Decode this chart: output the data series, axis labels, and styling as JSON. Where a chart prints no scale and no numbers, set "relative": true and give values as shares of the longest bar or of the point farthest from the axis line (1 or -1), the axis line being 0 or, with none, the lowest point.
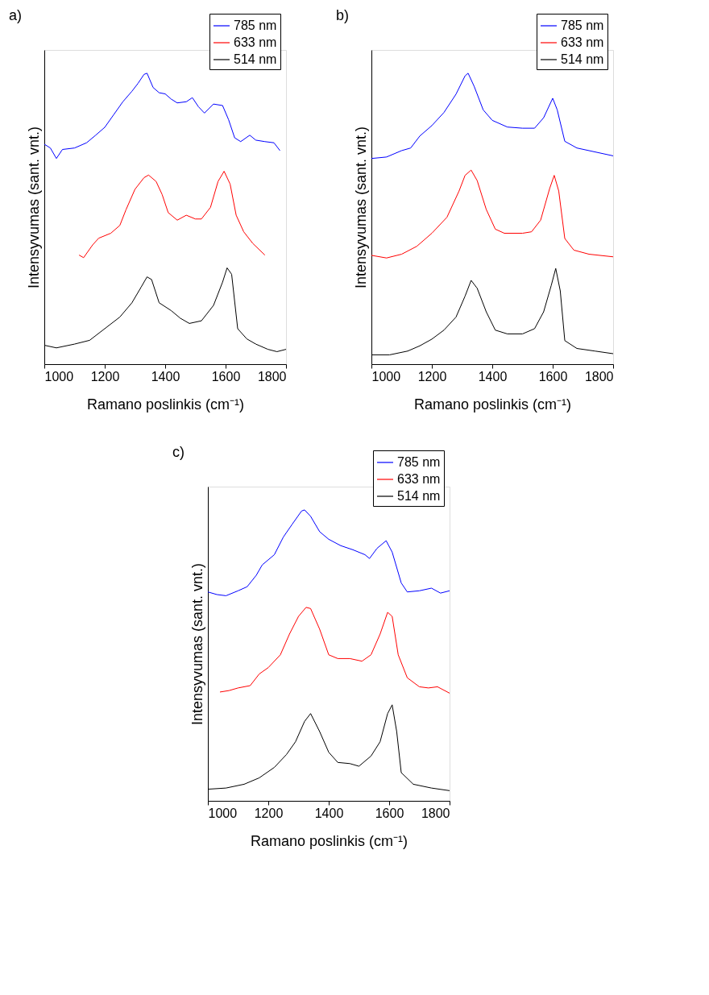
{
  "chart_data": [
    {
      "type": "line",
      "title": "a)",
      "xlabel": "Ramano poslinkis (cm⁻¹)",
      "ylabel": "Intensyvumas (sant. vnt.)",
      "relative": true,
      "xlim": [
        1000,
        1800
      ],
      "xticks": [
        1000,
        1200,
        1400,
        1600,
        1800
      ],
      "tick_labels": "x",
      "grid": false,
      "legend": "top right",
      "line_style": "solid",
      "marker": "none",
      "series": [
        {
          "name": "785 nm",
          "color": "#0000ff",
          "x": [
            1000,
            1020,
            1040,
            1060,
            1100,
            1140,
            1170,
            1200,
            1230,
            1260,
            1290,
            1310,
            1330,
            1340,
            1360,
            1380,
            1400,
            1420,
            1440,
            1470,
            1490,
            1510,
            1530,
            1560,
            1590,
            1610,
            1630,
            1650,
            1680,
            1700,
            1730,
            1760,
            1780
          ],
          "values": [
            0.756,
            0.743,
            0.707,
            0.738,
            0.743,
            0.761,
            0.787,
            0.814,
            0.858,
            0.902,
            0.938,
            0.965,
            0.996,
            1.0,
            0.951,
            0.933,
            0.929,
            0.911,
            0.898,
            0.902,
            0.916,
            0.885,
            0.863,
            0.894,
            0.889,
            0.84,
            0.778,
            0.765,
            0.787,
            0.77,
            0.765,
            0.761,
            0.734
          ]
        },
        {
          "name": "633 nm",
          "color": "#ff0000",
          "x": [
            1115,
            1130,
            1160,
            1180,
            1220,
            1250,
            1270,
            1300,
            1330,
            1345,
            1370,
            1390,
            1410,
            1440,
            1470,
            1500,
            1520,
            1550,
            1575,
            1595,
            1615,
            1635,
            1660,
            1690,
            1730
          ],
          "values": [
            0.375,
            0.366,
            0.41,
            0.433,
            0.45,
            0.477,
            0.53,
            0.601,
            0.641,
            0.65,
            0.628,
            0.583,
            0.521,
            0.495,
            0.512,
            0.499,
            0.499,
            0.539,
            0.628,
            0.663,
            0.619,
            0.512,
            0.455,
            0.415,
            0.375
          ]
        },
        {
          "name": "514 nm",
          "color": "#000000",
          "x": [
            1000,
            1040,
            1100,
            1150,
            1200,
            1250,
            1290,
            1320,
            1340,
            1355,
            1380,
            1420,
            1450,
            1480,
            1520,
            1560,
            1590,
            1605,
            1620,
            1640,
            1670,
            1700,
            1740,
            1770,
            1800
          ],
          "values": [
            0.065,
            0.056,
            0.069,
            0.082,
            0.122,
            0.162,
            0.211,
            0.264,
            0.3,
            0.291,
            0.211,
            0.184,
            0.158,
            0.14,
            0.149,
            0.202,
            0.282,
            0.331,
            0.309,
            0.122,
            0.087,
            0.069,
            0.051,
            0.043,
            0.051
          ]
        }
      ]
    },
    {
      "type": "line",
      "title": "b)",
      "xlabel": "Ramano poslinkis (cm⁻¹)",
      "ylabel": "Intensyvumas (sant. vnt.)",
      "relative": true,
      "xlim": [
        1000,
        1800
      ],
      "xticks": [
        1000,
        1200,
        1400,
        1600,
        1800
      ],
      "tick_labels": "x",
      "grid": false,
      "legend": "top right",
      "line_style": "solid",
      "marker": "none",
      "series": [
        {
          "name": "785 nm",
          "color": "#0000ff",
          "x": [
            1000,
            1050,
            1100,
            1130,
            1160,
            1200,
            1240,
            1280,
            1310,
            1320,
            1340,
            1370,
            1400,
            1450,
            1500,
            1540,
            1570,
            1600,
            1615,
            1640,
            1680,
            1720,
            1760,
            1800
          ],
          "values": [
            0.707,
            0.712,
            0.734,
            0.743,
            0.784,
            0.82,
            0.865,
            0.928,
            0.991,
            1.0,
            0.955,
            0.874,
            0.838,
            0.815,
            0.811,
            0.811,
            0.847,
            0.914,
            0.874,
            0.766,
            0.743,
            0.734,
            0.725,
            0.716
          ]
        },
        {
          "name": "633 nm",
          "color": "#ff0000",
          "x": [
            1000,
            1050,
            1100,
            1150,
            1200,
            1250,
            1290,
            1310,
            1330,
            1350,
            1380,
            1410,
            1440,
            1500,
            1530,
            1560,
            1590,
            1605,
            1620,
            1640,
            1670,
            1720,
            1800
          ],
          "values": [
            0.374,
            0.365,
            0.378,
            0.405,
            0.45,
            0.505,
            0.595,
            0.649,
            0.667,
            0.631,
            0.532,
            0.464,
            0.45,
            0.45,
            0.455,
            0.495,
            0.604,
            0.649,
            0.595,
            0.432,
            0.392,
            0.378,
            0.369
          ]
        },
        {
          "name": "514 nm",
          "color": "#000000",
          "x": [
            1000,
            1060,
            1120,
            1160,
            1200,
            1240,
            1280,
            1310,
            1330,
            1350,
            1380,
            1410,
            1450,
            1500,
            1540,
            1570,
            1595,
            1610,
            1625,
            1640,
            1680,
            1740,
            1800
          ],
          "values": [
            0.032,
            0.032,
            0.045,
            0.063,
            0.086,
            0.117,
            0.162,
            0.234,
            0.288,
            0.261,
            0.18,
            0.117,
            0.104,
            0.104,
            0.122,
            0.18,
            0.27,
            0.329,
            0.252,
            0.081,
            0.054,
            0.045,
            0.036
          ]
        }
      ]
    },
    {
      "type": "line",
      "title": "c)",
      "xlabel": "Ramano poslinkis (cm⁻¹)",
      "ylabel": "Intensyvumas (sant. vnt.)",
      "relative": true,
      "xlim": [
        1000,
        1800
      ],
      "xticks": [
        1000,
        1200,
        1400,
        1600,
        1800
      ],
      "tick_labels": "x",
      "grid": false,
      "legend": "top right",
      "line_style": "solid",
      "marker": "none",
      "series": [
        {
          "name": "785 nm",
          "color": "#0000ff",
          "x": [
            1000,
            1030,
            1060,
            1100,
            1130,
            1160,
            1180,
            1220,
            1250,
            1280,
            1310,
            1320,
            1340,
            1370,
            1400,
            1440,
            1480,
            1520,
            1535,
            1560,
            1590,
            1610,
            1640,
            1660,
            1700,
            1740,
            1770,
            1800
          ],
          "values": [
            0.718,
            0.709,
            0.705,
            0.722,
            0.736,
            0.775,
            0.811,
            0.846,
            0.907,
            0.952,
            0.996,
            1.0,
            0.978,
            0.925,
            0.899,
            0.877,
            0.863,
            0.846,
            0.833,
            0.868,
            0.894,
            0.855,
            0.749,
            0.718,
            0.722,
            0.731,
            0.714,
            0.722
          ]
        },
        {
          "name": "633 nm",
          "color": "#ff0000",
          "x": [
            1040,
            1070,
            1100,
            1140,
            1170,
            1200,
            1240,
            1270,
            1300,
            1325,
            1340,
            1370,
            1400,
            1430,
            1470,
            1510,
            1540,
            1570,
            1595,
            1610,
            1630,
            1660,
            1700,
            1730,
            1760,
            1800
          ],
          "values": [
            0.374,
            0.379,
            0.388,
            0.396,
            0.436,
            0.458,
            0.502,
            0.573,
            0.634,
            0.665,
            0.661,
            0.59,
            0.502,
            0.489,
            0.489,
            0.48,
            0.502,
            0.573,
            0.648,
            0.634,
            0.502,
            0.423,
            0.392,
            0.388,
            0.392,
            0.37
          ]
        },
        {
          "name": "514 nm",
          "color": "#000000",
          "x": [
            1000,
            1060,
            1120,
            1170,
            1220,
            1260,
            1290,
            1320,
            1340,
            1370,
            1400,
            1430,
            1470,
            1500,
            1540,
            1570,
            1595,
            1610,
            1625,
            1640,
            1680,
            1740,
            1800
          ],
          "values": [
            0.04,
            0.044,
            0.057,
            0.079,
            0.115,
            0.159,
            0.203,
            0.273,
            0.3,
            0.238,
            0.167,
            0.132,
            0.128,
            0.119,
            0.154,
            0.203,
            0.3,
            0.33,
            0.238,
            0.097,
            0.057,
            0.044,
            0.035
          ]
        }
      ]
    }
  ]
}
